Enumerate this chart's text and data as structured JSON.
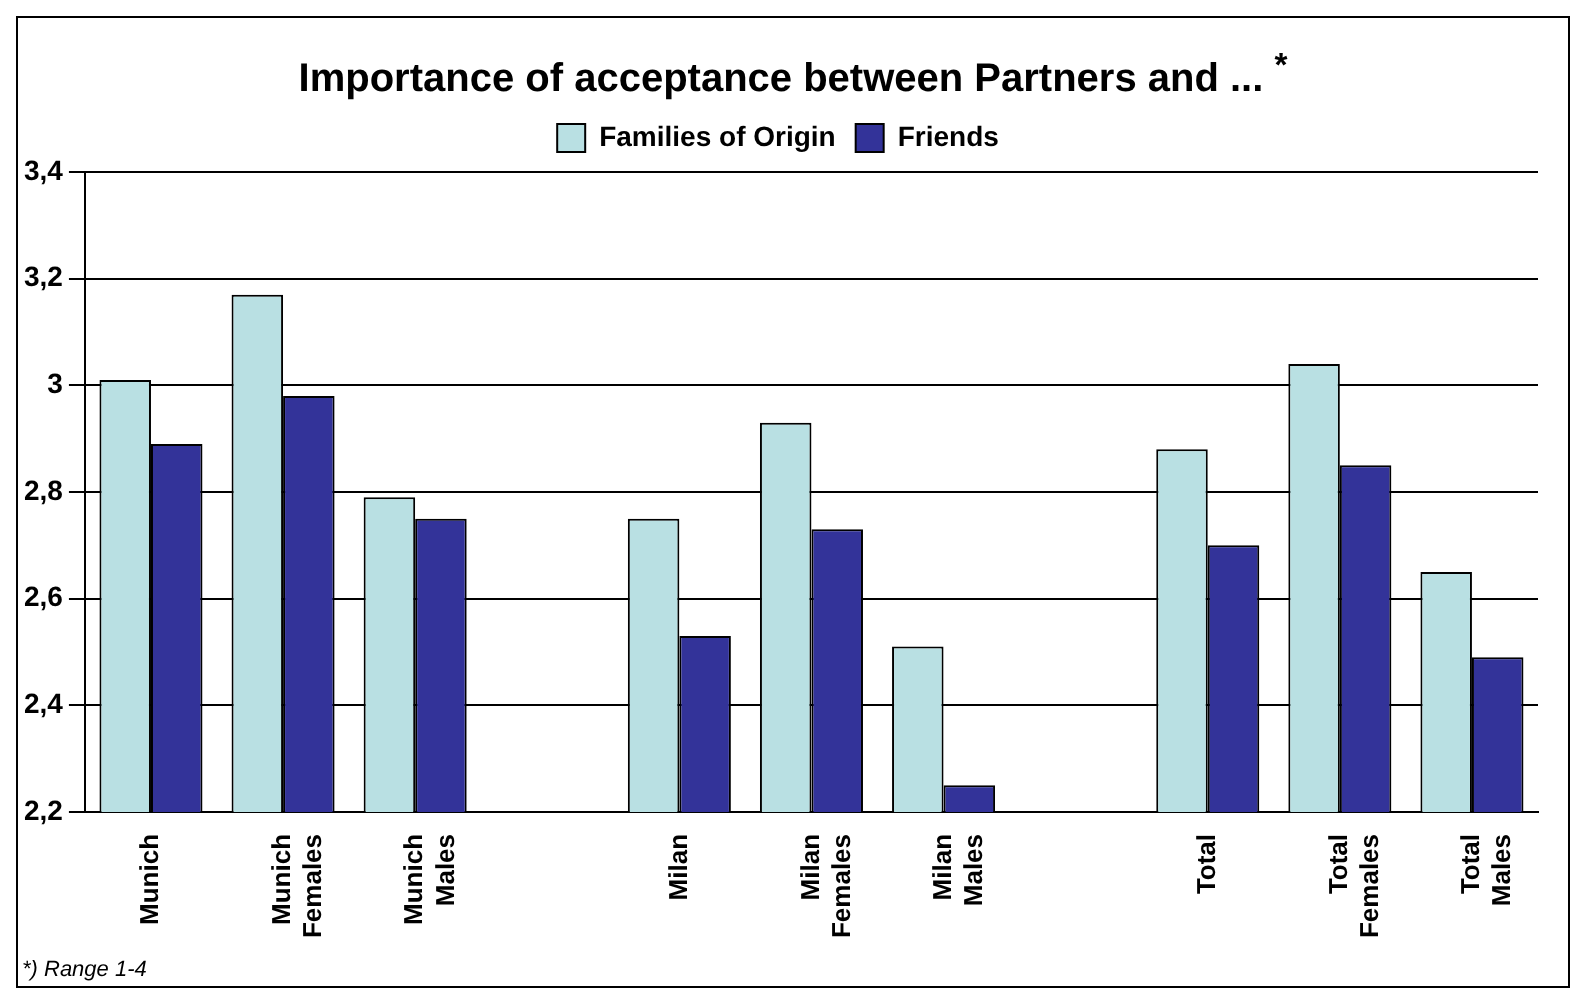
{
  "chart_data": {
    "type": "bar",
    "title": "Importance of acceptance between Partners and ... $^{*}$",
    "categories": [
      "Munich",
      "Munich Females",
      "Munich Males",
      null,
      "Milan",
      "Milan Females",
      "Milan Males",
      null,
      "Total",
      "Total Females",
      "Total Males"
    ],
    "series": [
      {
        "name": "Families of Origin",
        "color": "#b9e0e3",
        "values": [
          3.01,
          3.17,
          2.79,
          null,
          2.75,
          2.93,
          2.51,
          null,
          2.88,
          3.04,
          2.65
        ]
      },
      {
        "name": "Friends",
        "color": "#333399",
        "values": [
          2.89,
          2.98,
          2.75,
          null,
          2.53,
          2.73,
          2.25,
          null,
          2.7,
          2.85,
          2.49
        ]
      }
    ],
    "ylim": [
      2.2,
      3.4
    ],
    "yticks": [
      {
        "value": 2.2,
        "label": "2,2"
      },
      {
        "value": 2.4,
        "label": "2,4"
      },
      {
        "value": 2.6,
        "label": "2,6"
      },
      {
        "value": 2.8,
        "label": "2,8"
      },
      {
        "value": 3,
        "label": "3"
      },
      {
        "value": 3.2,
        "label": "3,2"
      },
      {
        "value": 3.4,
        "label": "3,4"
      }
    ],
    "grid": "y",
    "legend": "top",
    "annotations": [
      "*) Range 1-4"
    ]
  }
}
